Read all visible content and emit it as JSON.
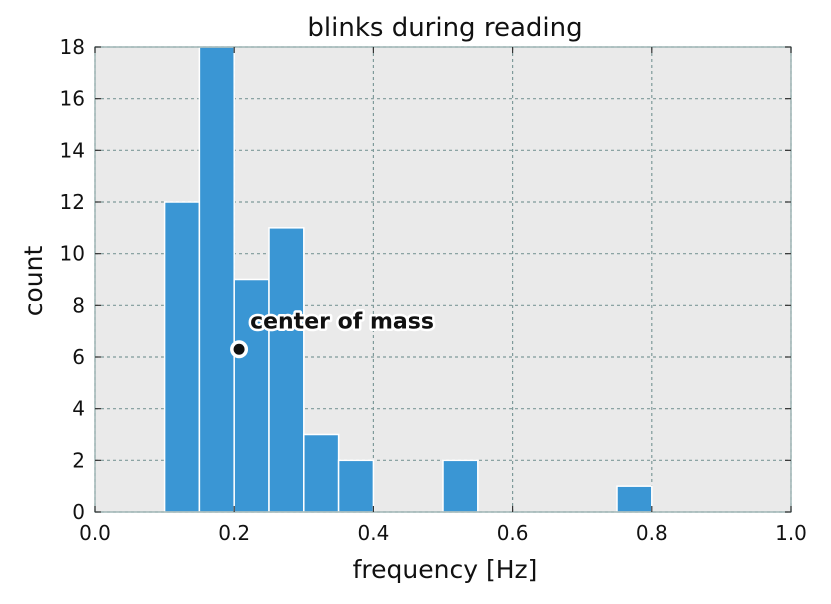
{
  "chart_data": {
    "type": "bar",
    "title": "blinks during reading",
    "xlabel": "frequency [Hz]",
    "ylabel": "count",
    "xlim": [
      0.0,
      1.0
    ],
    "ylim": [
      0,
      18
    ],
    "xticks": [
      "0.0",
      "0.2",
      "0.4",
      "0.6",
      "0.8",
      "1.0"
    ],
    "yticks": [
      "0",
      "2",
      "4",
      "6",
      "8",
      "10",
      "12",
      "14",
      "16",
      "18"
    ],
    "grid": true,
    "bar_color": "#3a96d4",
    "background_color": "#eaeaea",
    "bins": [
      {
        "start": 0.1,
        "end": 0.15,
        "count": 12
      },
      {
        "start": 0.15,
        "end": 0.2,
        "count": 18
      },
      {
        "start": 0.2,
        "end": 0.25,
        "count": 9
      },
      {
        "start": 0.25,
        "end": 0.3,
        "count": 11
      },
      {
        "start": 0.3,
        "end": 0.35,
        "count": 3
      },
      {
        "start": 0.35,
        "end": 0.4,
        "count": 2
      },
      {
        "start": 0.5,
        "end": 0.55,
        "count": 2
      },
      {
        "start": 0.75,
        "end": 0.8,
        "count": 1
      }
    ],
    "annotation": {
      "text": "center of mass",
      "x": 0.207,
      "y": 6.3
    }
  }
}
